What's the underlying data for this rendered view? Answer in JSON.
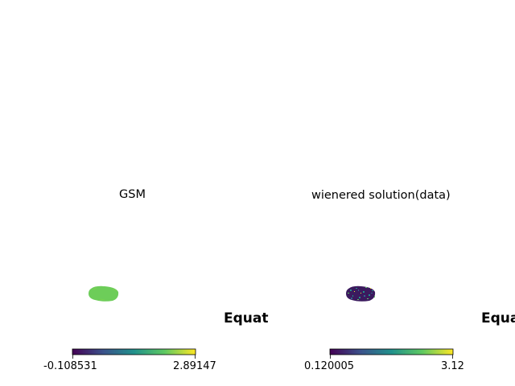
{
  "chart_data": [
    {
      "type": "heatmap",
      "title": "GSM",
      "coord_label": "Equatorial",
      "colormap": "viridis",
      "colorbar": {
        "min_label": "-0.108531",
        "max_label": "2.89147",
        "min": -0.108531,
        "max": 2.89147
      },
      "patch_value": 2.2
    },
    {
      "type": "heatmap",
      "title": "wienered solution(data)",
      "coord_label": "Equatorial",
      "colormap": "viridis",
      "colorbar": {
        "min_label": "0.120005",
        "max_label": "3.12",
        "min": 0.120005,
        "max": 3.12
      },
      "patch_value": "mixed"
    }
  ]
}
